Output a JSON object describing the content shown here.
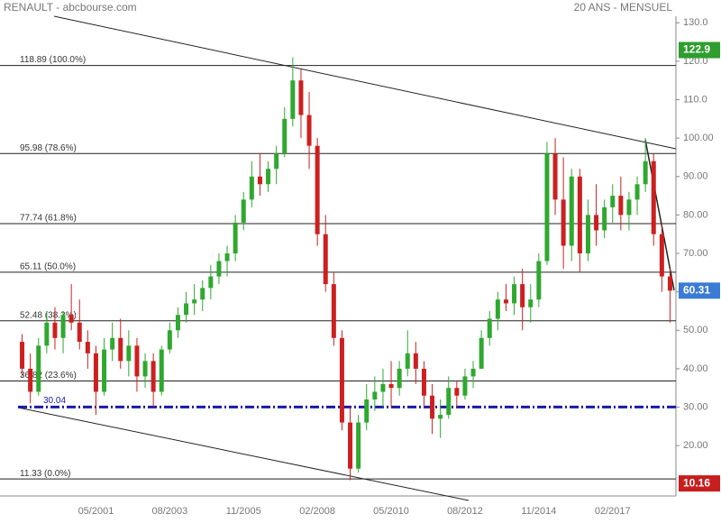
{
  "chart_data": {
    "type": "candlestick",
    "title": "RENAULT - abcbourse.com",
    "subtitle": "20 ANS - MENSUEL",
    "categories": [
      null,
      null,
      null,
      null,
      null,
      null,
      null,
      null,
      null,
      "05/2001",
      null,
      null,
      null,
      null,
      null,
      null,
      null,
      null,
      "08/2003",
      null,
      null,
      null,
      null,
      null,
      null,
      null,
      null,
      "11/2005",
      null,
      null,
      null,
      null,
      null,
      null,
      null,
      null,
      "02/2008",
      null,
      null,
      null,
      null,
      null,
      null,
      null,
      null,
      "05/2010",
      null,
      null,
      null,
      null,
      null,
      null,
      null,
      null,
      "08/2012",
      null,
      null,
      null,
      null,
      null,
      null,
      null,
      null,
      "11/2014",
      null,
      null,
      null,
      null,
      null,
      null,
      null,
      null,
      "02/2017",
      null,
      null,
      null,
      null,
      null,
      null,
      null
    ],
    "open": [
      47,
      40,
      34,
      46,
      52,
      48,
      54,
      52,
      47,
      44,
      34,
      45,
      48,
      42,
      46,
      38,
      42,
      34,
      45,
      50,
      54,
      57,
      58,
      61,
      64,
      68,
      70,
      78,
      84,
      90,
      88,
      92,
      96,
      105,
      115,
      106,
      98,
      75,
      62,
      48,
      26,
      14,
      26,
      32,
      34,
      36,
      35,
      40,
      44,
      40,
      33,
      27,
      28,
      35,
      33,
      38,
      40,
      48,
      53,
      58,
      57,
      62,
      56,
      58,
      68,
      96,
      84,
      72,
      90,
      70,
      80,
      76,
      82,
      85,
      80,
      84,
      88,
      94,
      75,
      64
    ],
    "high": [
      49,
      44,
      48,
      55,
      56,
      55,
      62,
      58,
      50,
      46,
      48,
      52,
      53,
      50,
      48,
      44,
      44,
      46,
      52,
      56,
      60,
      62,
      63,
      67,
      70,
      72,
      80,
      86,
      94,
      96,
      94,
      98,
      108,
      121,
      118,
      112,
      100,
      80,
      65,
      50,
      30,
      28,
      36,
      38,
      40,
      42,
      42,
      50,
      47,
      42,
      36,
      32,
      38,
      37,
      40,
      42,
      50,
      55,
      60,
      62,
      64,
      66,
      62,
      70,
      99,
      100,
      95,
      92,
      92,
      84,
      88,
      84,
      88,
      90,
      86,
      90,
      100,
      96,
      78,
      66
    ],
    "low": [
      38,
      31,
      33,
      44,
      45,
      44,
      50,
      45,
      40,
      28,
      33,
      42,
      40,
      38,
      34,
      35,
      30,
      33,
      44,
      48,
      52,
      54,
      55,
      58,
      62,
      64,
      68,
      76,
      82,
      85,
      86,
      88,
      95,
      103,
      100,
      92,
      72,
      60,
      46,
      24,
      11,
      13,
      24,
      29,
      30,
      30,
      33,
      38,
      36,
      30,
      23,
      22,
      27,
      30,
      32,
      35,
      40,
      46,
      50,
      55,
      54,
      50,
      52,
      56,
      67,
      80,
      66,
      68,
      65,
      68,
      72,
      74,
      78,
      76,
      76,
      80,
      86,
      72,
      60,
      52
    ],
    "close": [
      40,
      34,
      46,
      52,
      48,
      54,
      52,
      47,
      44,
      34,
      45,
      48,
      42,
      46,
      38,
      42,
      34,
      45,
      50,
      54,
      57,
      58,
      61,
      64,
      68,
      70,
      78,
      84,
      90,
      88,
      92,
      96,
      105,
      115,
      106,
      98,
      75,
      62,
      48,
      26,
      14,
      26,
      32,
      34,
      36,
      35,
      40,
      44,
      40,
      33,
      27,
      28,
      35,
      33,
      38,
      40,
      48,
      53,
      58,
      57,
      62,
      56,
      58,
      68,
      96,
      84,
      72,
      90,
      70,
      80,
      76,
      82,
      85,
      80,
      84,
      88,
      94,
      75,
      64,
      60.31
    ],
    "up_color": "#2fa82f",
    "down_color": "#cc2020",
    "ylim": [
      6.9,
      131.7
    ],
    "yticks": [
      {
        "value": 20,
        "label": "20.00"
      },
      {
        "value": 30,
        "label": "30.00"
      },
      {
        "value": 40,
        "label": "40.00"
      },
      {
        "value": 50,
        "label": "50.00"
      },
      {
        "value": 60,
        "label": "60.00"
      },
      {
        "value": 70,
        "label": "70.00"
      },
      {
        "value": 80,
        "label": "80.00"
      },
      {
        "value": 90,
        "label": "90.00"
      },
      {
        "value": 100,
        "label": "100.00"
      },
      {
        "value": 110,
        "label": "110.0"
      },
      {
        "value": 120,
        "label": "120.0"
      },
      {
        "value": 130,
        "label": "130.0"
      }
    ],
    "levels": [
      {
        "value": 118.89,
        "label": "118.89  (100.0%)"
      },
      {
        "value": 95.98,
        "label": "95.98  (78.6%)"
      },
      {
        "value": 77.74,
        "label": "77.74  (61.8%)"
      },
      {
        "value": 65.11,
        "label": "65.11  (50.0%)"
      },
      {
        "value": 52.48,
        "label": "52.48  (38.2%)"
      },
      {
        "value": 36.82,
        "label": "36.82  (23.6%)"
      },
      {
        "value": 11.33,
        "label": "11.33  (0.0%)"
      }
    ],
    "support": {
      "value": 30.04,
      "color": "#1a1aa8"
    },
    "tags": [
      {
        "value": 122.9,
        "color": "#2e9e2e"
      },
      {
        "value": 60.31,
        "color": "#3a7bd5"
      },
      {
        "value": 10.16,
        "color": "#c81e1e"
      }
    ]
  }
}
